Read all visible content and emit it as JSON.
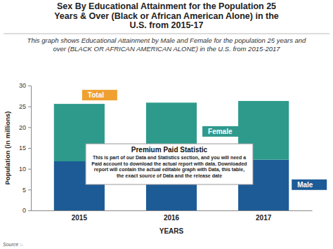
{
  "chart_data": {
    "type": "bar",
    "title": "Sex By Educational Attainment for the Population 25 Years & Over (Black or African American Alone) in the U.S. from 2015-17",
    "subtitle": "This graph shows Educational Attainment by Male and Female for the population 25 years and over (BLACK OR AFRICAN AMERICAN ALONE) in the U.S. from 2015-2017",
    "x_label": "YEARS",
    "y_label": "Population (in millions)",
    "categories": [
      "2015",
      "2016",
      "2017"
    ],
    "series": [
      {
        "name": "Male",
        "color": "#1c5b96",
        "values": [
          11.8,
          11.9,
          12.2
        ]
      },
      {
        "name": "Female",
        "color": "#2e9a8c",
        "values": [
          13.8,
          14.0,
          14.1
        ]
      }
    ],
    "ylim": [
      0,
      30
    ],
    "yticks": [
      0,
      5,
      10,
      15,
      20,
      25,
      30
    ],
    "stacked": true,
    "grid": false,
    "annotations": [
      "Total",
      "Premium Paid Statistic",
      "This is part of our Data and Statistics section, and you will need a Paid account to download the actual report with data. Downloaded report will contain the actual editable graph with Data, this table, the exact source of Data and the release date",
      "Source :-"
    ]
  }
}
